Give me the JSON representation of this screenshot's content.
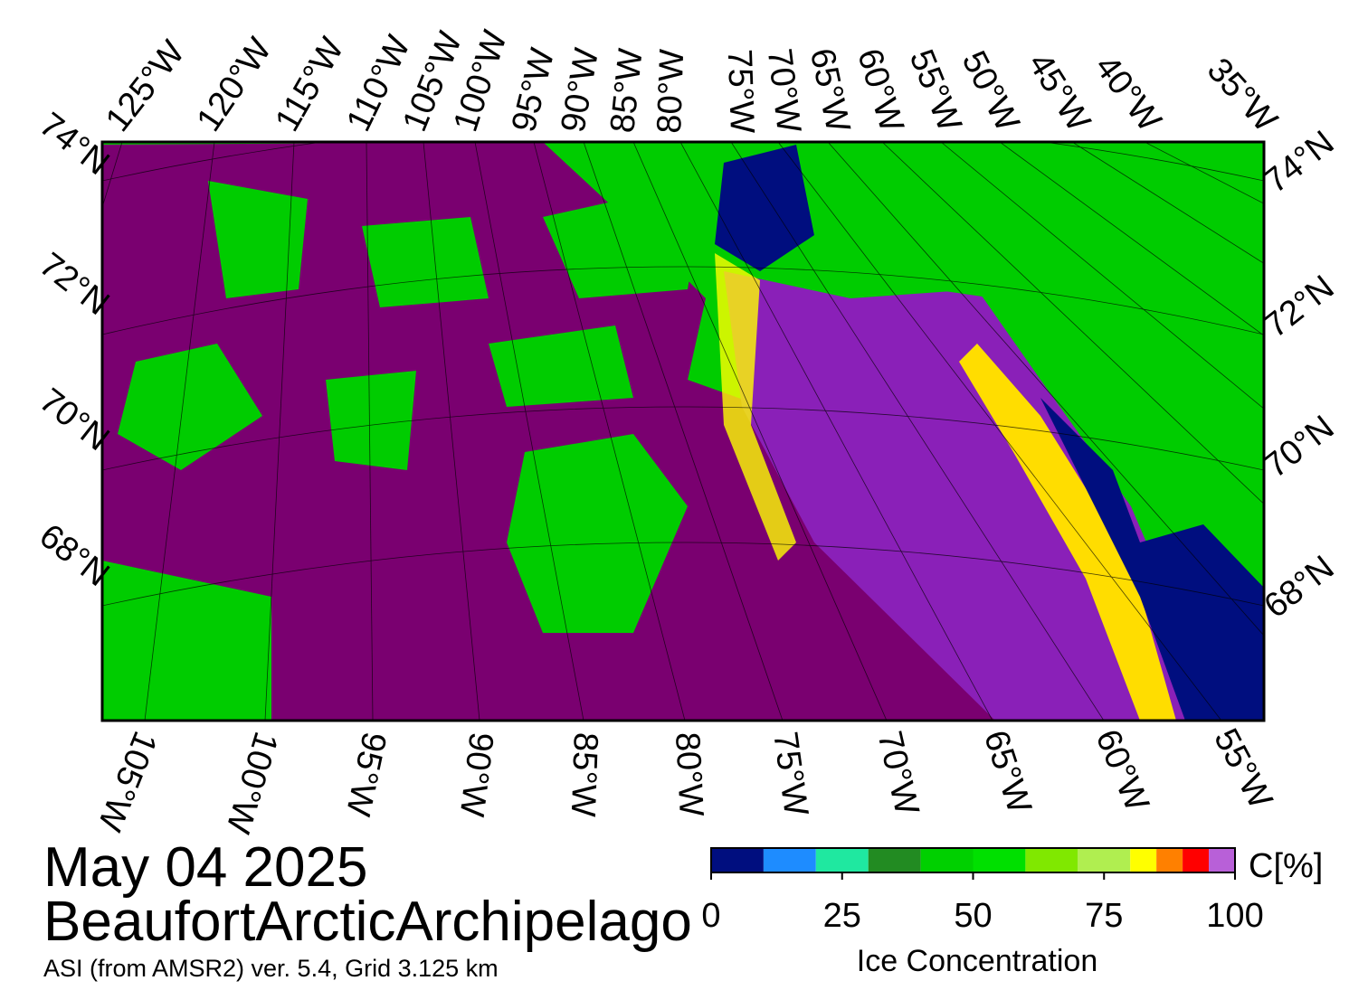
{
  "header": {
    "date": "May 04 2025",
    "region": "BeaufortArcticArchipelago",
    "source": "ASI (from AMSR2) ver. 5.4,  Grid 3.125 km"
  },
  "map": {
    "top_longitudes": [
      "125°W",
      "120°W",
      "115°W",
      "110°W",
      "105°W",
      "100°W",
      "95°W",
      "90°W",
      "85°W",
      "80°W",
      "75°W",
      "70°W",
      "65°W",
      "60°W",
      "55°W",
      "50°W",
      "45°W",
      "40°W",
      "35°W"
    ],
    "bottom_longitudes": [
      "105°W",
      "100°W",
      "95°W",
      "90°W",
      "85°W",
      "80°W",
      "75°W",
      "70°W",
      "65°W",
      "60°W",
      "55°W"
    ],
    "left_latitudes": [
      "74°N",
      "72°N",
      "70°N",
      "68°N"
    ],
    "right_latitudes": [
      "74°N",
      "72°N",
      "70°N",
      "68°N"
    ]
  },
  "colorbar": {
    "unit": "C[%]",
    "label": "Ice Concentration",
    "range": [
      0,
      100
    ],
    "bounds": [
      0,
      10,
      20,
      30,
      40,
      50,
      60,
      70,
      80,
      85,
      90,
      95,
      100
    ],
    "colors": [
      "#000e7f",
      "#1e8cff",
      "#1fe8a0",
      "#228b22",
      "#00d000",
      "#00e000",
      "#80e800",
      "#b0ee50",
      "#ffff00",
      "#ff8000",
      "#ff0000",
      "#b860d8",
      "#8000c8"
    ],
    "ticks": [
      0,
      25,
      50,
      75,
      100
    ]
  }
}
